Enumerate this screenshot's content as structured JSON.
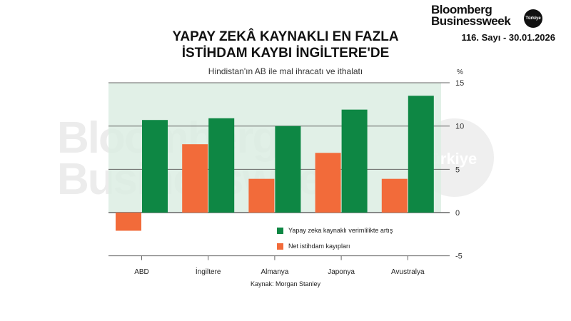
{
  "brand": {
    "line1": "Bloomberg",
    "line2": "Businessweek",
    "badge": "Türkiye",
    "issue": "116. Sayı - 30.01.2026"
  },
  "title_line1": "YAPAY ZEKÂ KAYNAKLI EN FAZLA",
  "title_line2": "İSTİHDAM KAYBI İNGİLTERE'DE",
  "subtitle": "Hindistan'ın AB ile mal ihracatı ve ithalatı",
  "unit_label": "%",
  "source": "Kaynak: Morgan Stanley",
  "watermark": {
    "line1": "Bloomberg",
    "line2": "Businessweek",
    "circle": "Türkiye"
  },
  "colors": {
    "green": "#0e8744",
    "orange": "#f26b3a",
    "shade": "#dcede3",
    "grid": "#666666"
  },
  "legend": [
    {
      "label": "Yapay zeka kaynaklı verimlilikte artış",
      "color": "#0e8744"
    },
    {
      "label": "Net istihdam kayıpları",
      "color": "#f26b3a"
    }
  ],
  "chart_data": {
    "type": "bar",
    "title": "YAPAY ZEKÂ KAYNAKLI EN FAZLA İSTİHDAM KAYBI İNGİLTERE'DE",
    "subtitle": "Hindistan'ın AB ile mal ihracatı ve ithalatı",
    "categories": [
      "ABD",
      "İngiltere",
      "Almanya",
      "Japonya",
      "Avustralya"
    ],
    "series": [
      {
        "name": "Net istihdam kayıpları",
        "values": [
          -2.1,
          7.9,
          3.9,
          6.9,
          3.9
        ],
        "color": "#f26b3a"
      },
      {
        "name": "Yapay zeka kaynaklı verimlilikte artış",
        "values": [
          10.7,
          10.9,
          10.0,
          11.9,
          13.5
        ],
        "color": "#0e8744"
      }
    ],
    "xlabel": "",
    "ylabel": "%",
    "ylim": [
      -5,
      15
    ],
    "yticks": [
      15,
      10,
      5,
      0,
      -5
    ],
    "grid": true,
    "legend_position": "inside-lower-right",
    "shaded_band": [
      0,
      15
    ],
    "source": "Kaynak: Morgan Stanley"
  }
}
